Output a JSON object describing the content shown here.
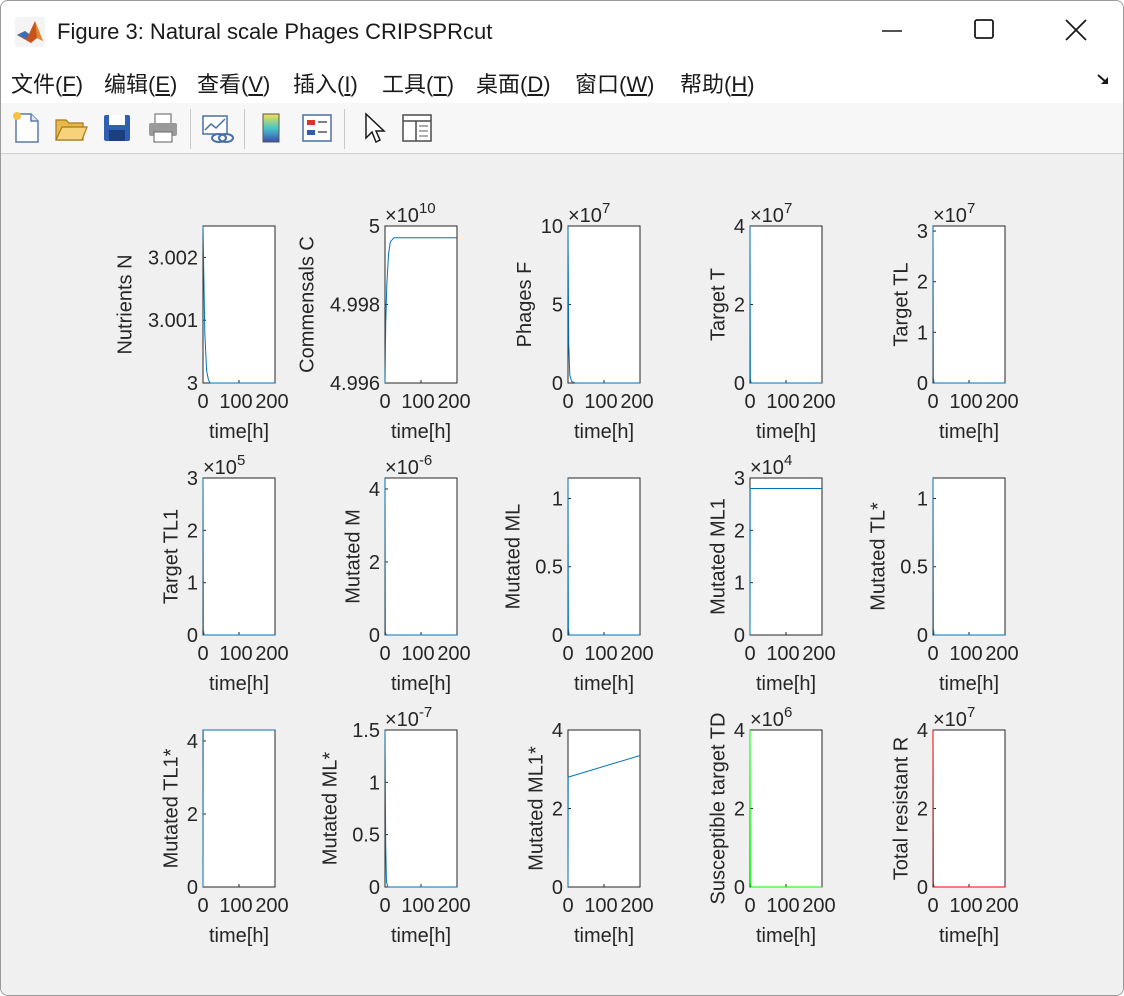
{
  "window": {
    "title": "Figure 3: Natural scale Phages CRIPSPRcut"
  },
  "menu": [
    {
      "text": "文件(",
      "key": "F",
      "end": ")"
    },
    {
      "text": "编辑(",
      "key": "E",
      "end": ")"
    },
    {
      "text": "查看(",
      "key": "V",
      "end": ")"
    },
    {
      "text": "插入(",
      "key": "I",
      "end": ")"
    },
    {
      "text": "工具(",
      "key": "T",
      "end": ")"
    },
    {
      "text": "桌面(",
      "key": "D",
      "end": ")"
    },
    {
      "text": "窗口(",
      "key": "W",
      "end": ")"
    },
    {
      "text": "帮助(",
      "key": "H",
      "end": ")"
    }
  ],
  "toolbar": [
    "new-figure-icon",
    "open-file-icon",
    "save-icon",
    "print-icon",
    "link-plot-icon",
    "colorbar-icon",
    "legend-icon",
    "pointer-icon",
    "property-inspector-icon"
  ],
  "chart_data": [
    {
      "type": "line",
      "ylabel": "Nutrients N",
      "xlabel": "time[h]",
      "xlim": [
        0,
        200
      ],
      "ylim": [
        3,
        3.0025
      ],
      "yticks": [
        "3",
        "3.001",
        "3.002"
      ],
      "ytickvals": [
        3,
        3.001,
        3.002
      ],
      "exponent": "",
      "xticks": [
        "0",
        "100",
        "200"
      ],
      "color": "#0072bd",
      "curve": "decay",
      "x": [
        0,
        2,
        5,
        10,
        15,
        20,
        200
      ],
      "y": [
        3.0025,
        3.0018,
        3.0008,
        3.0002,
        3.00005,
        3.0,
        3.0
      ]
    },
    {
      "type": "line",
      "ylabel": "Commensals C",
      "xlabel": "time[h]",
      "xlim": [
        0,
        200
      ],
      "ylim": [
        4.996,
        5
      ],
      "yticks": [
        "4.996",
        "4.998",
        "5"
      ],
      "ytickvals": [
        4.996,
        4.998,
        5
      ],
      "exponent": "10",
      "xticks": [
        "0",
        "100",
        "200"
      ],
      "color": "#0072bd",
      "curve": "rise",
      "x": [
        0,
        2,
        5,
        10,
        15,
        25,
        200
      ],
      "y": [
        4.996,
        4.9975,
        4.9985,
        4.9993,
        4.9996,
        4.9997,
        4.9997
      ]
    },
    {
      "type": "line",
      "ylabel": "Phages F",
      "xlabel": "time[h]",
      "xlim": [
        0,
        200
      ],
      "ylim": [
        0,
        10
      ],
      "yticks": [
        "0",
        "5",
        "10"
      ],
      "ytickvals": [
        0,
        5,
        10
      ],
      "exponent": "7",
      "xticks": [
        "0",
        "100",
        "200"
      ],
      "color": "#0072bd",
      "curve": "decay",
      "x": [
        0,
        2,
        5,
        10,
        20,
        200
      ],
      "y": [
        10,
        2.5,
        0.5,
        0.1,
        0,
        0
      ]
    },
    {
      "type": "line",
      "ylabel": "Target T",
      "xlabel": "time[h]",
      "xlim": [
        0,
        200
      ],
      "ylim": [
        0,
        4
      ],
      "yticks": [
        "0",
        "2",
        "4"
      ],
      "ytickvals": [
        0,
        2,
        4
      ],
      "exponent": "7",
      "xticks": [
        "0",
        "100",
        "200"
      ],
      "color": "#0072bd",
      "curve": "decay",
      "x": [
        0,
        1,
        3,
        200
      ],
      "y": [
        4,
        0.1,
        0,
        0
      ]
    },
    {
      "type": "line",
      "ylabel": "Target TL",
      "xlabel": "time[h]",
      "xlim": [
        0,
        200
      ],
      "ylim": [
        0,
        3.1
      ],
      "yticks": [
        "0",
        "1",
        "2",
        "3"
      ],
      "ytickvals": [
        0,
        1,
        2,
        3
      ],
      "exponent": "7",
      "xticks": [
        "0",
        "100",
        "200"
      ],
      "color": "#0072bd",
      "curve": "decay",
      "x": [
        0,
        1,
        3,
        200
      ],
      "y": [
        3.1,
        0.1,
        0,
        0
      ]
    },
    {
      "type": "line",
      "ylabel": "Target TL1",
      "xlabel": "time[h]",
      "xlim": [
        0,
        200
      ],
      "ylim": [
        0,
        3
      ],
      "yticks": [
        "0",
        "1",
        "2",
        "3"
      ],
      "ytickvals": [
        0,
        1,
        2,
        3
      ],
      "exponent": "5",
      "xticks": [
        "0",
        "100",
        "200"
      ],
      "color": "#0072bd",
      "curve": "decay",
      "x": [
        0,
        1,
        3,
        200
      ],
      "y": [
        3,
        0.1,
        0,
        0
      ]
    },
    {
      "type": "line",
      "ylabel": "Mutated M",
      "xlabel": "time[h]",
      "xlim": [
        0,
        200
      ],
      "ylim": [
        0,
        4.3
      ],
      "yticks": [
        "0",
        "2",
        "4"
      ],
      "ytickvals": [
        0,
        2,
        4
      ],
      "exponent": "-6",
      "xticks": [
        "0",
        "100",
        "200"
      ],
      "color": "#0072bd",
      "curve": "decay",
      "x": [
        0,
        1,
        3,
        200
      ],
      "y": [
        4.3,
        0.1,
        0,
        0
      ]
    },
    {
      "type": "line",
      "ylabel": "Mutated ML",
      "xlabel": "time[h]",
      "xlim": [
        0,
        200
      ],
      "ylim": [
        0,
        1.15
      ],
      "yticks": [
        "0",
        "0.5",
        "1"
      ],
      "ytickvals": [
        0,
        0.5,
        1
      ],
      "exponent": "",
      "xticks": [
        "0",
        "100",
        "200"
      ],
      "color": "#0072bd",
      "curve": "decay",
      "x": [
        0,
        1,
        3,
        200
      ],
      "y": [
        1.15,
        0.05,
        0,
        0
      ]
    },
    {
      "type": "line",
      "ylabel": "Mutated ML1",
      "xlabel": "time[h]",
      "xlim": [
        0,
        200
      ],
      "ylim": [
        0,
        3
      ],
      "yticks": [
        "0",
        "1",
        "2",
        "3"
      ],
      "ytickvals": [
        0,
        1,
        2,
        3
      ],
      "exponent": "4",
      "xticks": [
        "0",
        "100",
        "200"
      ],
      "color": "#0072bd",
      "curve": "flat",
      "x": [
        0,
        0.5,
        1,
        200
      ],
      "y": [
        0,
        2.8,
        2.8,
        2.8
      ]
    },
    {
      "type": "line",
      "ylabel": "Mutated TL*",
      "xlabel": "time[h]",
      "xlim": [
        0,
        200
      ],
      "ylim": [
        0,
        1.15
      ],
      "yticks": [
        "0",
        "0.5",
        "1"
      ],
      "ytickvals": [
        0,
        0.5,
        1
      ],
      "exponent": "",
      "xticks": [
        "0",
        "100",
        "200"
      ],
      "color": "#0072bd",
      "curve": "decay",
      "x": [
        0,
        1,
        3,
        200
      ],
      "y": [
        1.15,
        0.05,
        0,
        0
      ]
    },
    {
      "type": "line",
      "ylabel": "Mutated TL1*",
      "xlabel": "time[h]",
      "xlim": [
        0,
        200
      ],
      "ylim": [
        0,
        4.3
      ],
      "yticks": [
        "0",
        "2",
        "4"
      ],
      "ytickvals": [
        0,
        2,
        4
      ],
      "exponent": "",
      "xticks": [
        "0",
        "100",
        "200"
      ],
      "color": "#0072bd",
      "curve": "flat",
      "x": [
        0,
        0.5,
        1,
        200
      ],
      "y": [
        0,
        4.3,
        4.3,
        4.3
      ]
    },
    {
      "type": "line",
      "ylabel": "Mutated ML*",
      "xlabel": "time[h]",
      "xlim": [
        0,
        200
      ],
      "ylim": [
        0,
        1.5
      ],
      "yticks": [
        "0",
        "0.5",
        "1",
        "1.5"
      ],
      "ytickvals": [
        0,
        0.5,
        1,
        1.5
      ],
      "exponent": "-7",
      "xticks": [
        "0",
        "100",
        "200"
      ],
      "color": "#0072bd",
      "curve": "decay",
      "x": [
        0,
        2,
        4,
        8,
        200
      ],
      "y": [
        1.5,
        0.4,
        0.05,
        0,
        0
      ]
    },
    {
      "type": "line",
      "ylabel": "Mutated ML1*",
      "xlabel": "time[h]",
      "xlim": [
        0,
        200
      ],
      "ylim": [
        0,
        4
      ],
      "yticks": [
        "0",
        "2",
        "4"
      ],
      "ytickvals": [
        0,
        2,
        4
      ],
      "exponent": "",
      "xticks": [
        "0",
        "100",
        "200"
      ],
      "color": "#0072bd",
      "curve": "linear",
      "x": [
        0,
        0.5,
        200
      ],
      "y": [
        0,
        2.8,
        3.35
      ]
    },
    {
      "type": "line",
      "ylabel": "Susceptible target TD",
      "xlabel": "time[h]",
      "xlim": [
        0,
        200
      ],
      "ylim": [
        0,
        4
      ],
      "yticks": [
        "0",
        "2",
        "4"
      ],
      "ytickvals": [
        0,
        2,
        4
      ],
      "exponent": "6",
      "xticks": [
        "0",
        "100",
        "200"
      ],
      "color": "#00ff00",
      "curve": "decay",
      "x": [
        0,
        1,
        3,
        200
      ],
      "y": [
        4,
        0.1,
        0,
        0
      ]
    },
    {
      "type": "line",
      "ylabel": "Total resistant R",
      "xlabel": "time[h]",
      "xlim": [
        0,
        200
      ],
      "ylim": [
        0,
        4
      ],
      "yticks": [
        "0",
        "2",
        "4"
      ],
      "ytickvals": [
        0,
        2,
        4
      ],
      "exponent": "7",
      "xticks": [
        "0",
        "100",
        "200"
      ],
      "color": "#ff0000",
      "curve": "decay",
      "x": [
        0,
        1,
        3,
        200
      ],
      "y": [
        4,
        0.1,
        0,
        0
      ]
    }
  ]
}
